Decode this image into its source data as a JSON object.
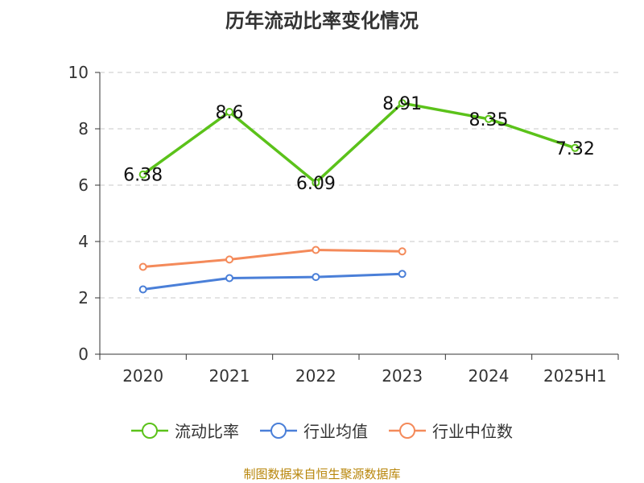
{
  "chart_data": {
    "type": "line",
    "title": "历年流动比率变化情况",
    "categories": [
      "2020",
      "2021",
      "2022",
      "2023",
      "2024",
      "2025H1"
    ],
    "ylim": [
      0,
      10
    ],
    "yticks": [
      0,
      2,
      4,
      6,
      8,
      10
    ],
    "grid": true,
    "legend_position": "bottom",
    "series": [
      {
        "name": "流动比率",
        "color": "#5bc21a",
        "values": [
          6.38,
          8.6,
          6.09,
          8.91,
          8.35,
          7.32
        ],
        "labels": [
          "6.38",
          "8.6",
          "6.09",
          "8.91",
          "8.35",
          "7.32"
        ],
        "show_labels": true
      },
      {
        "name": "行业均值",
        "color": "#4a7fd8",
        "values": [
          2.3,
          2.7,
          2.74,
          2.85,
          null,
          null
        ],
        "show_labels": false
      },
      {
        "name": "行业中位数",
        "color": "#f48a5a",
        "values": [
          3.1,
          3.36,
          3.7,
          3.65,
          null,
          null
        ],
        "show_labels": false
      }
    ]
  },
  "source_text": "制图数据来自恒生聚源数据库"
}
